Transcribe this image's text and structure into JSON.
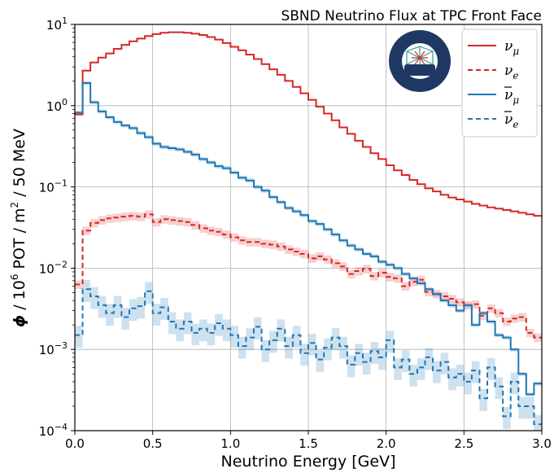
{
  "chart_data": {
    "type": "line",
    "step": true,
    "title": "SBND Neutrino Flux at TPC Front Face",
    "xlabel": "Neutrino Energy [GeV]",
    "ylabel_parts": {
      "phi": "ϕ",
      "sep": " / 10",
      "exp": "6",
      "mid": " POT / m",
      "exp2": "2",
      "end": " / 50 MeV"
    },
    "xlim": [
      0.0,
      3.0
    ],
    "ylim": [
      0.0001,
      10
    ],
    "yscale": "log",
    "grid": true,
    "xticks": [
      {
        "value": 0.0,
        "label": "0.0"
      },
      {
        "value": 0.5,
        "label": "0.5"
      },
      {
        "value": 1.0,
        "label": "1.0"
      },
      {
        "value": 1.5,
        "label": "1.5"
      },
      {
        "value": 2.0,
        "label": "2.0"
      },
      {
        "value": 2.5,
        "label": "2.5"
      },
      {
        "value": 3.0,
        "label": "3.0"
      }
    ],
    "yticks": [
      {
        "value": 0.0001,
        "base": "10",
        "exp": "−4"
      },
      {
        "value": 0.001,
        "base": "10",
        "exp": "−3"
      },
      {
        "value": 0.01,
        "base": "10",
        "exp": "−2"
      },
      {
        "value": 0.1,
        "base": "10",
        "exp": "−1"
      },
      {
        "value": 1,
        "base": "10",
        "exp": "0"
      },
      {
        "value": 10,
        "base": "10",
        "exp": "1"
      }
    ],
    "legend_position": "top-right",
    "bin_width": 0.05,
    "bin_edges_start": 0.0,
    "series": [
      {
        "name": "νμ",
        "sym": "ν",
        "sub": "μ",
        "bar": false,
        "color": "#d62728",
        "dash": "solid",
        "band": 0.02,
        "values": [
          0.78,
          2.7,
          3.4,
          3.9,
          4.4,
          5.0,
          5.6,
          6.2,
          6.7,
          7.2,
          7.6,
          7.9,
          8.0,
          8.0,
          7.9,
          7.7,
          7.4,
          7.0,
          6.5,
          5.9,
          5.3,
          4.8,
          4.25,
          3.75,
          3.25,
          2.8,
          2.4,
          2.02,
          1.7,
          1.42,
          1.18,
          0.97,
          0.8,
          0.66,
          0.54,
          0.45,
          0.37,
          0.31,
          0.26,
          0.22,
          0.185,
          0.16,
          0.14,
          0.122,
          0.108,
          0.096,
          0.088,
          0.08,
          0.074,
          0.07,
          0.066,
          0.062,
          0.059,
          0.056,
          0.054,
          0.052,
          0.05,
          0.048,
          0.046,
          0.044
        ]
      },
      {
        "name": "νe",
        "sym": "ν",
        "sub": "e",
        "bar": false,
        "color": "#d62728",
        "dash": "dashed",
        "band": 0.12,
        "values": [
          0.0063,
          0.029,
          0.036,
          0.039,
          0.041,
          0.042,
          0.043,
          0.044,
          0.043,
          0.046,
          0.037,
          0.04,
          0.039,
          0.038,
          0.037,
          0.034,
          0.031,
          0.029,
          0.028,
          0.026,
          0.024,
          0.022,
          0.021,
          0.021,
          0.02,
          0.0195,
          0.0185,
          0.017,
          0.016,
          0.015,
          0.0132,
          0.014,
          0.0128,
          0.0115,
          0.0105,
          0.0085,
          0.0092,
          0.0098,
          0.008,
          0.0088,
          0.0078,
          0.0075,
          0.006,
          0.0068,
          0.0072,
          0.0051,
          0.0048,
          0.0045,
          0.0042,
          0.0038,
          0.0035,
          0.0036,
          0.0026,
          0.0032,
          0.0028,
          0.0022,
          0.0024,
          0.0025,
          0.0016,
          0.0014
        ]
      },
      {
        "name": "ν̄μ",
        "sym": "ν",
        "sub": "μ",
        "bar": true,
        "color": "#1f77b4",
        "dash": "solid",
        "band": 0.06,
        "values": [
          0.82,
          1.9,
          1.1,
          0.85,
          0.72,
          0.63,
          0.57,
          0.53,
          0.46,
          0.41,
          0.34,
          0.31,
          0.3,
          0.29,
          0.27,
          0.25,
          0.22,
          0.2,
          0.18,
          0.17,
          0.15,
          0.13,
          0.12,
          0.1,
          0.09,
          0.075,
          0.065,
          0.055,
          0.05,
          0.045,
          0.038,
          0.035,
          0.03,
          0.026,
          0.022,
          0.019,
          0.017,
          0.015,
          0.014,
          0.012,
          0.011,
          0.01,
          0.0085,
          0.0075,
          0.0065,
          0.0055,
          0.0048,
          0.004,
          0.0035,
          0.003,
          0.0035,
          0.002,
          0.0028,
          0.0022,
          0.0015,
          0.0014,
          0.001,
          0.0005,
          0.00028,
          0.00038
        ]
      },
      {
        "name": "ν̄e",
        "sym": "ν",
        "sub": "e",
        "bar": true,
        "color": "#1f77b4",
        "dash": "dashed",
        "band": 0.3,
        "values": [
          0.0015,
          0.0055,
          0.0045,
          0.0035,
          0.0028,
          0.0035,
          0.0025,
          0.0032,
          0.0034,
          0.0052,
          0.0028,
          0.0033,
          0.0022,
          0.0018,
          0.0022,
          0.0016,
          0.0018,
          0.0016,
          0.0021,
          0.0018,
          0.0015,
          0.0011,
          0.0014,
          0.0019,
          0.001,
          0.0013,
          0.0018,
          0.0011,
          0.0015,
          0.0009,
          0.0012,
          0.00075,
          0.00105,
          0.0014,
          0.0011,
          0.00065,
          0.0009,
          0.0007,
          0.00095,
          0.0008,
          0.0013,
          0.0006,
          0.00075,
          0.0005,
          0.0006,
          0.0008,
          0.00055,
          0.0007,
          0.00045,
          0.0005,
          0.0004,
          0.00055,
          0.00025,
          0.0006,
          0.00035,
          0.00015,
          0.0004,
          0.0002,
          0.0002,
          0.00012
        ]
      }
    ]
  },
  "logo": {
    "ring_text": "SHORT-BASELINE NEAR DETECTOR",
    "center": "SBND"
  },
  "colors": {
    "red": "#d62728",
    "blue": "#1f77b4",
    "logo_navy": "#1f3864"
  }
}
